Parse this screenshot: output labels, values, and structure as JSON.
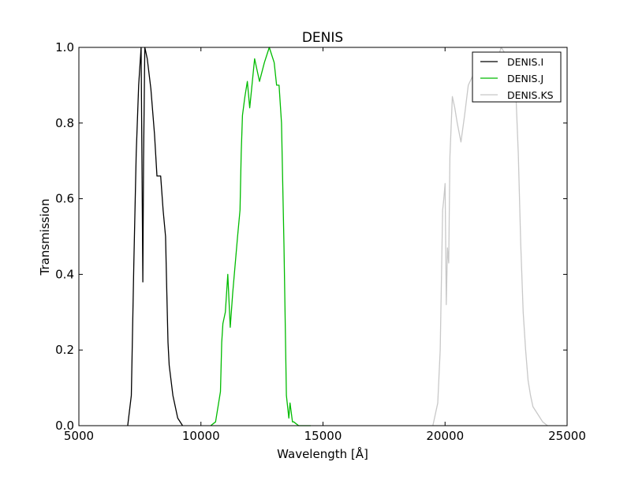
{
  "chart_data": {
    "type": "line",
    "title": "DENIS",
    "xlabel": "Wavelength [Å]",
    "ylabel": "Transmission",
    "xlim": [
      5000,
      25000
    ],
    "ylim": [
      0.0,
      1.0
    ],
    "x_ticks": [
      5000,
      10000,
      15000,
      20000,
      25000
    ],
    "x_tick_labels": [
      "5000",
      "10000",
      "15000",
      "20000",
      "25000"
    ],
    "y_ticks": [
      0.0,
      0.2,
      0.4,
      0.6,
      0.8,
      1.0
    ],
    "y_tick_labels": [
      "0.0",
      "0.2",
      "0.4",
      "0.6",
      "0.8",
      "1.0"
    ],
    "grid": false,
    "legend": {
      "position": "top-right",
      "entries": [
        "DENIS.I",
        "DENIS.J",
        "DENIS.KS"
      ]
    },
    "series": [
      {
        "name": "DENIS.I",
        "color": "#000000",
        "x": [
          7000,
          7150,
          7250,
          7350,
          7450,
          7550,
          7620,
          7650,
          7700,
          7800,
          7950,
          8100,
          8200,
          8300,
          8350,
          8450,
          8550,
          8600,
          8650,
          8700,
          8850,
          9050,
          9250
        ],
        "y": [
          0.0,
          0.08,
          0.42,
          0.72,
          0.9,
          1.0,
          0.38,
          0.7,
          1.0,
          0.97,
          0.89,
          0.77,
          0.66,
          0.66,
          0.66,
          0.57,
          0.5,
          0.36,
          0.22,
          0.16,
          0.08,
          0.02,
          0.0
        ]
      },
      {
        "name": "DENIS.J",
        "color": "#00bb00",
        "x": [
          10400,
          10600,
          10800,
          10850,
          10900,
          11000,
          11100,
          11200,
          11300,
          11500,
          11600,
          11650,
          11700,
          11800,
          11900,
          12000,
          12200,
          12400,
          12600,
          12800,
          13000,
          13100,
          13200,
          13300,
          13400,
          13500,
          13600,
          13650,
          13750,
          13800,
          14000,
          14300,
          14500
        ],
        "y": [
          0.0,
          0.01,
          0.09,
          0.22,
          0.27,
          0.3,
          0.4,
          0.26,
          0.35,
          0.5,
          0.57,
          0.72,
          0.82,
          0.87,
          0.91,
          0.84,
          0.97,
          0.91,
          0.96,
          1.0,
          0.96,
          0.9,
          0.9,
          0.8,
          0.48,
          0.08,
          0.02,
          0.06,
          0.01,
          0.01,
          0.0,
          0.0,
          0.0
        ]
      },
      {
        "name": "DENIS.KS",
        "color": "#c8c8c8",
        "x": [
          19500,
          19600,
          19700,
          19800,
          19900,
          19950,
          20000,
          20050,
          20100,
          20150,
          20200,
          20300,
          20400,
          20500,
          20650,
          20800,
          20950,
          21100,
          21300,
          21500,
          21700,
          21900,
          22100,
          22300,
          22500,
          22700,
          22900,
          23000,
          23100,
          23200,
          23300,
          23400,
          23500,
          23600,
          23800,
          24000,
          24200
        ],
        "y": [
          0.0,
          0.03,
          0.06,
          0.2,
          0.57,
          0.6,
          0.64,
          0.32,
          0.47,
          0.43,
          0.71,
          0.87,
          0.84,
          0.8,
          0.75,
          0.82,
          0.9,
          0.92,
          0.95,
          0.94,
          0.96,
          0.95,
          0.96,
          1.0,
          0.98,
          0.97,
          0.88,
          0.72,
          0.48,
          0.3,
          0.2,
          0.12,
          0.08,
          0.05,
          0.03,
          0.01,
          0.0
        ]
      }
    ]
  }
}
